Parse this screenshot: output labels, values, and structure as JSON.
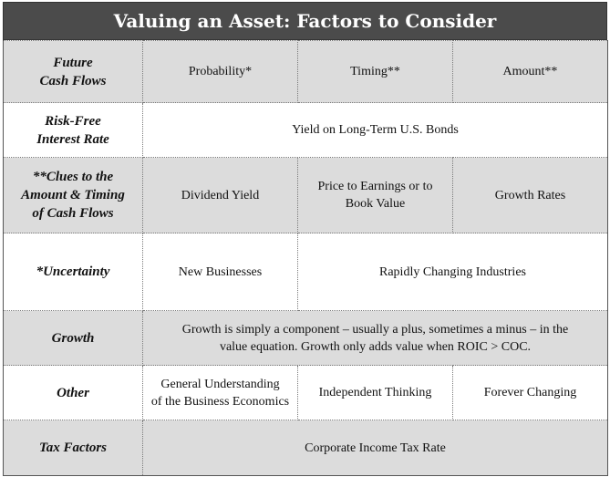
{
  "title": "Valuing an Asset: Factors to Consider",
  "rows": {
    "future_cash_flows": {
      "label": "Future\nCash Flows",
      "cells": [
        "Probability*",
        "Timing**",
        "Amount**"
      ]
    },
    "risk_free": {
      "label": "Risk-Free\nInterest Rate",
      "cell": "Yield on Long-Term U.S. Bonds"
    },
    "clues": {
      "label": "**Clues to the\nAmount & Timing\nof Cash Flows",
      "cells": [
        "Dividend Yield",
        "Price to Earnings or to\nBook Value",
        "Growth Rates"
      ]
    },
    "uncertainty": {
      "label": "*Uncertainty",
      "cells": [
        "New Businesses",
        "Rapidly Changing Industries"
      ]
    },
    "growth": {
      "label": "Growth",
      "cell": "Growth is simply a component – usually a plus, sometimes a minus – in the\nvalue equation. Growth only adds value when ROIC > COC."
    },
    "other": {
      "label": "Other",
      "cells": [
        "General Understanding\nof the Business Economics",
        "Independent Thinking",
        "Forever Changing"
      ]
    },
    "tax": {
      "label": "Tax Factors",
      "cell": "Corporate Income Tax Rate"
    }
  }
}
